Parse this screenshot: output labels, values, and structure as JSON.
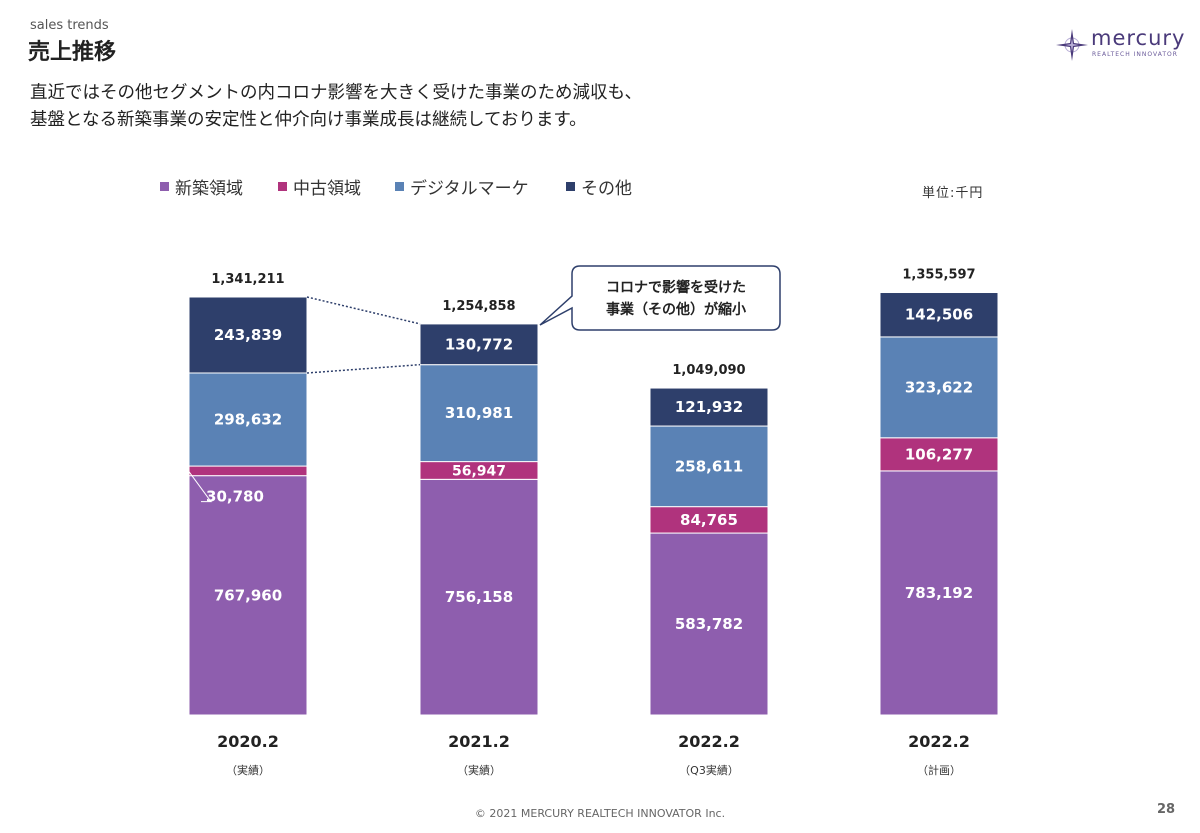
{
  "header": {
    "kicker": "sales trends",
    "title": "売上推移",
    "description": [
      "直近ではその他セグメントの内コロナ影響を大きく受けた事業のため減収も、",
      "基盤となる新築事業の安定性と仲介向け事業成長は継続しております。"
    ]
  },
  "logo": {
    "name": "mercury",
    "tagline": "REALTECH INNOVATOR"
  },
  "unit_label": "単位:千円",
  "callout": {
    "lines": [
      "コロナで影響を受けた",
      "事業（その他）が縮小"
    ]
  },
  "footer": {
    "copyright": "© 2021 MERCURY REALTECH INNOVATOR Inc.",
    "page": "28"
  },
  "chart_data": {
    "type": "bar",
    "stacked": true,
    "legend_position": "top-left",
    "categories": [
      "2020.2",
      "2021.2",
      "2022.2",
      "2022.2"
    ],
    "category_sublabels": [
      "（実績）",
      "（実績）",
      "（Q3実績）",
      "（計画）"
    ],
    "totals": [
      "1,341,211",
      "1,254,858",
      "1,049,090",
      "1,355,597"
    ],
    "series": [
      {
        "name": "新築領域",
        "color": "#8e5eae",
        "values": [
          767960,
          756158,
          583782,
          783192
        ]
      },
      {
        "name": "中古領域",
        "color": "#b0337d",
        "values": [
          30780,
          56947,
          84765,
          106277
        ]
      },
      {
        "name": "デジタルマーケ",
        "color": "#5a82b5",
        "values": [
          298632,
          310981,
          258611,
          323622
        ]
      },
      {
        "name": "その他",
        "color": "#2e3f6b",
        "values": [
          243839,
          130772,
          121932,
          142506
        ]
      }
    ]
  }
}
